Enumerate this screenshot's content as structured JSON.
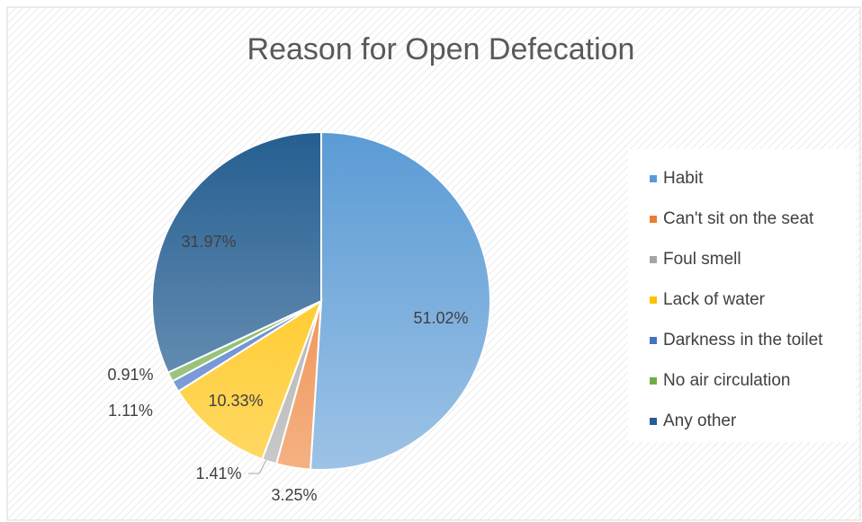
{
  "chart_data": {
    "type": "pie",
    "title": "Reason for Open Defecation",
    "categories": [
      "Habit",
      "Can't sit on the seat",
      "Foul smell",
      "Lack of water",
      "Darkness in the toilet",
      "No air circulation",
      "Any other"
    ],
    "values": [
      51.02,
      3.25,
      1.41,
      10.33,
      1.11,
      0.91,
      31.97
    ],
    "value_labels": [
      "51.02%",
      "3.25%",
      "1.41%",
      "10.33%",
      "1.11%",
      "0.91%",
      "31.97%"
    ],
    "colors": [
      "#5b9bd5",
      "#ed7d31",
      "#a5a5a5",
      "#ffc000",
      "#4472c4",
      "#70ad47",
      "#255e91"
    ],
    "legend": "right"
  }
}
